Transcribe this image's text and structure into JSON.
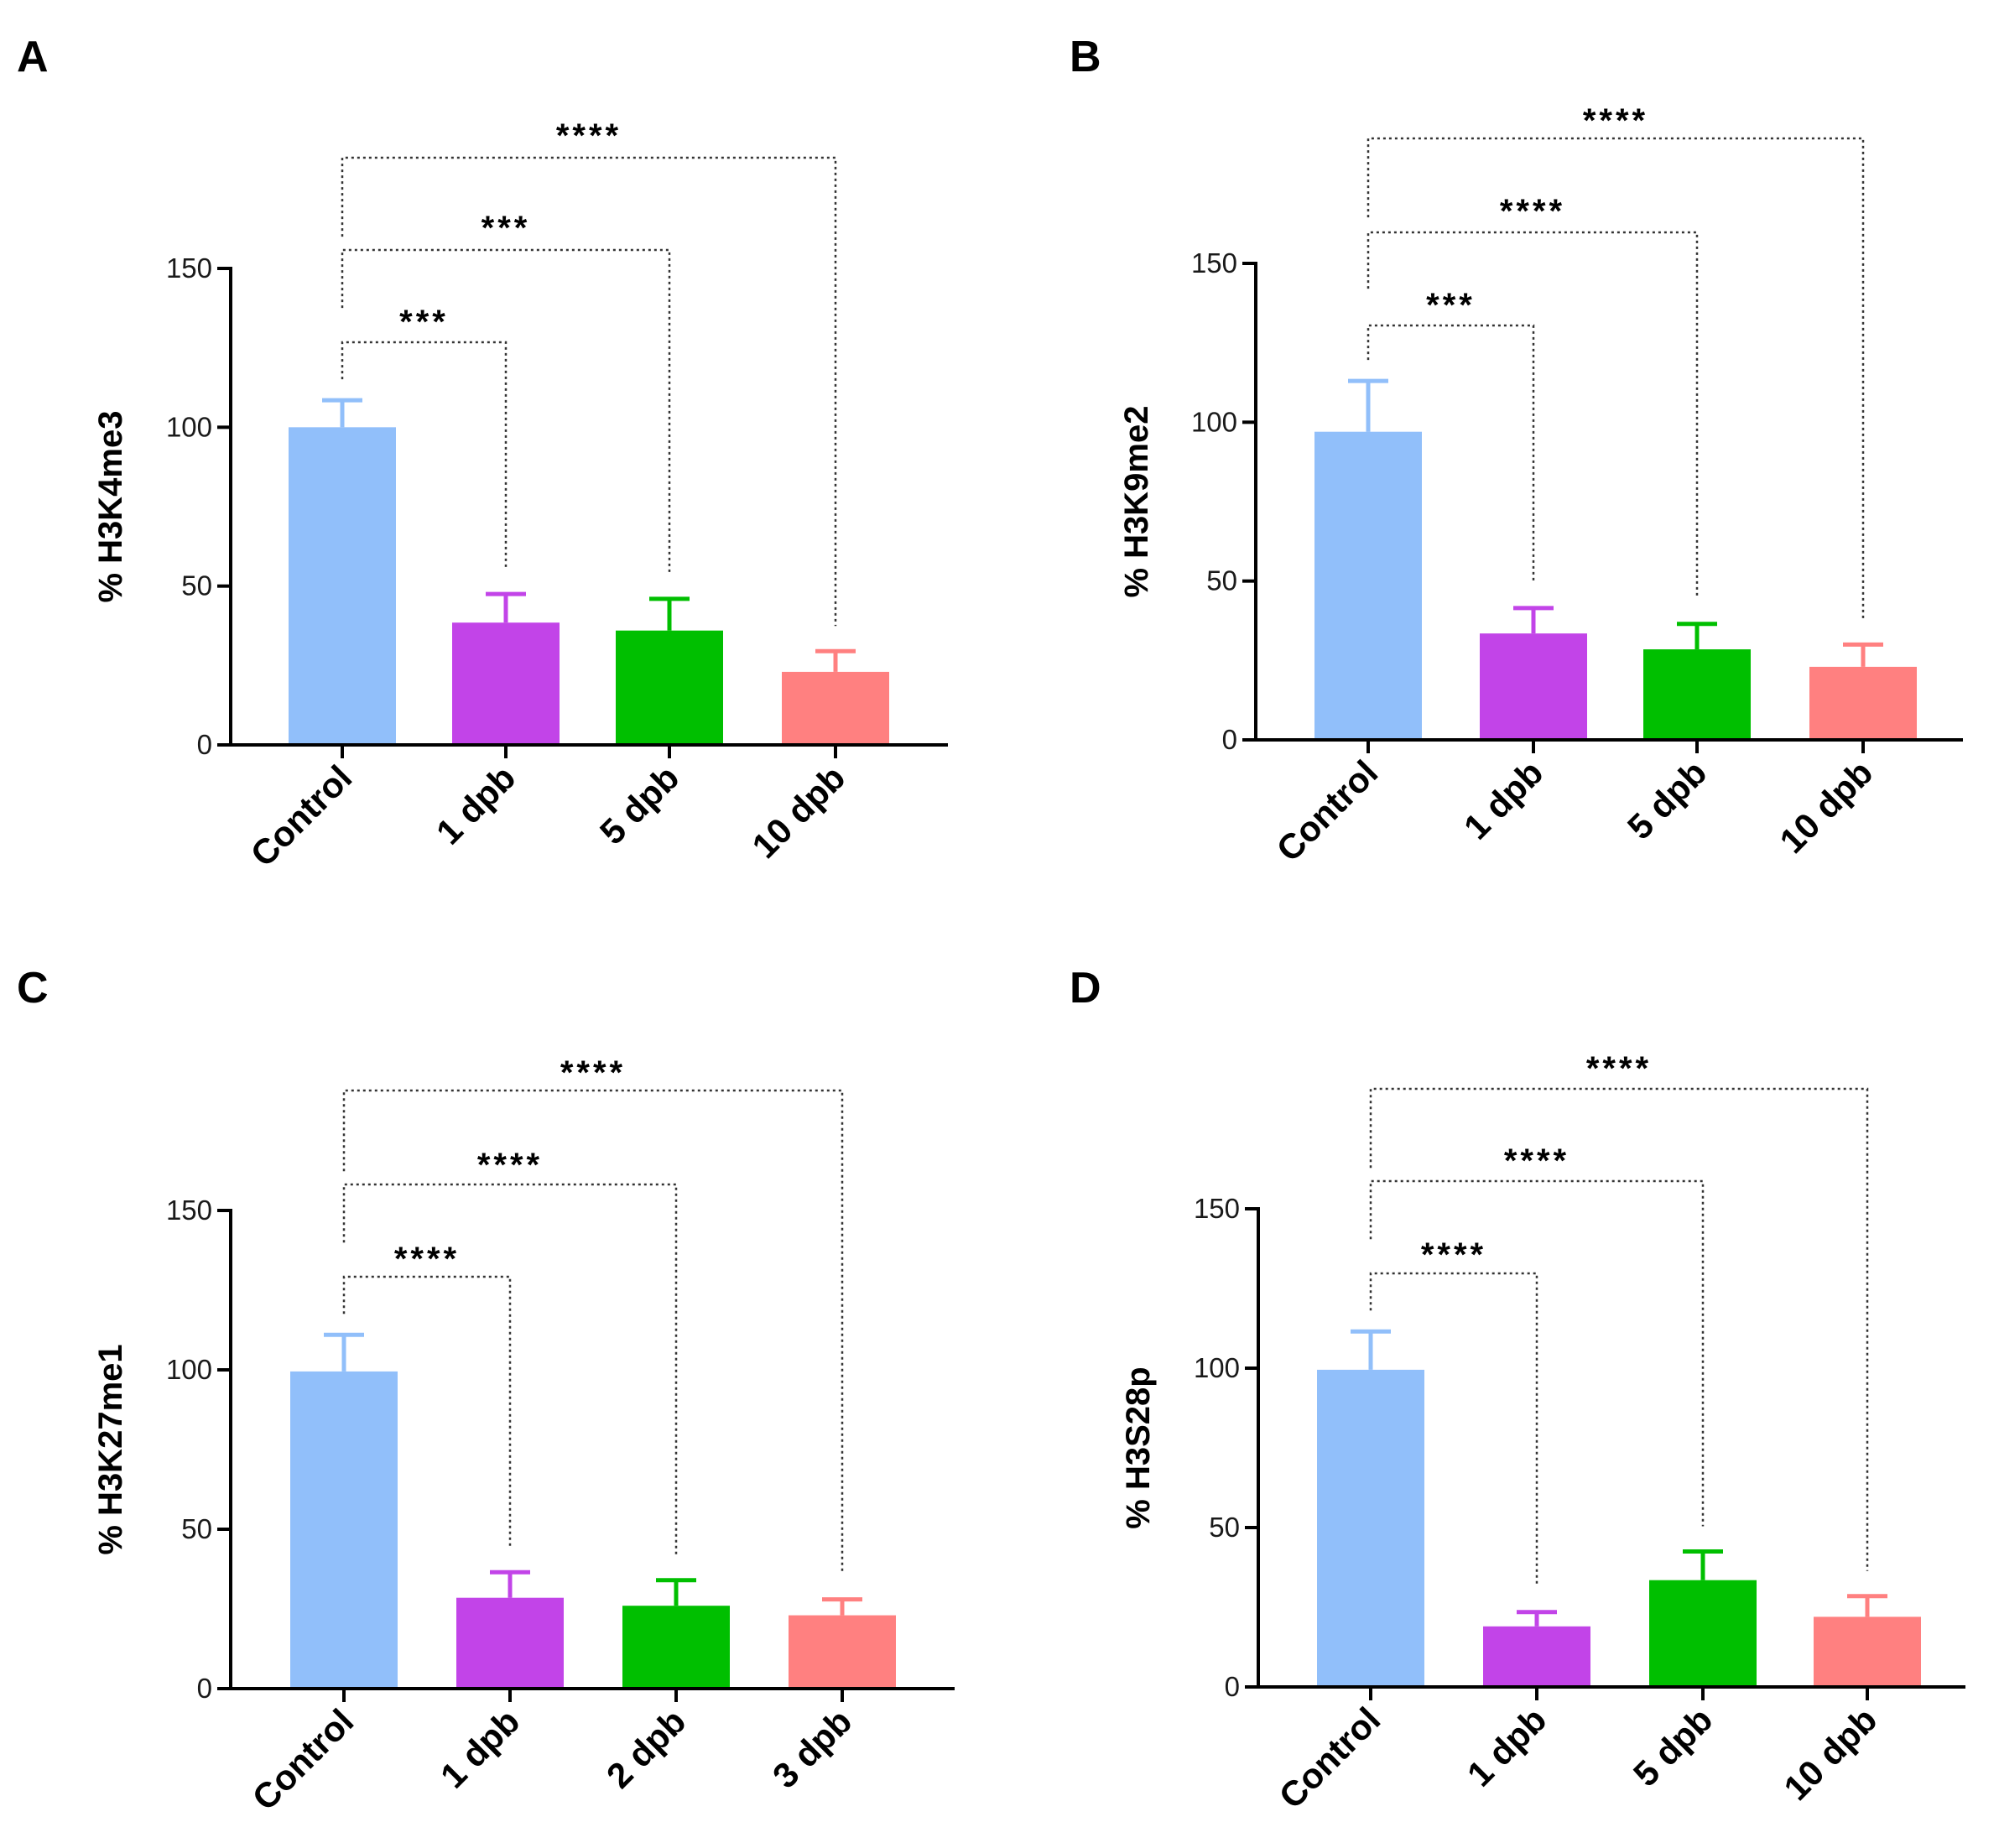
{
  "figure": {
    "panels": [
      {
        "letter": "A"
      },
      {
        "letter": "B"
      },
      {
        "letter": "C"
      },
      {
        "letter": "D"
      }
    ]
  },
  "colors": {
    "series": [
      "#91bffa",
      "#c244e8",
      "#00bf00",
      "#ff8080"
    ],
    "axis": "#000000",
    "bracket": "#333333"
  },
  "chart_data": [
    {
      "type": "bar",
      "title": "",
      "ylabel": "% H3K4me3",
      "xlabel": "",
      "ylim": [
        0,
        150
      ],
      "yticks": [
        0,
        50,
        100,
        150
      ],
      "grid": false,
      "categories": [
        "Control",
        "1 dpb",
        "5 dpb",
        "10 dpb"
      ],
      "values": [
        100,
        38.5,
        36,
        23
      ],
      "errors": [
        8.5,
        9,
        10,
        6.5
      ],
      "comparisons": [
        {
          "from": "Control",
          "to": "1 dpb",
          "label": "***"
        },
        {
          "from": "Control",
          "to": "5 dpb",
          "label": "***"
        },
        {
          "from": "Control",
          "to": "10 dpb",
          "label": "****"
        }
      ]
    },
    {
      "type": "bar",
      "title": "",
      "ylabel": "% H3K9me2",
      "xlabel": "",
      "ylim": [
        0,
        150
      ],
      "yticks": [
        0,
        50,
        100,
        150
      ],
      "grid": false,
      "categories": [
        "Control",
        "1 dpb",
        "5 dpb",
        "10 dpb"
      ],
      "values": [
        97,
        33.5,
        28.5,
        23
      ],
      "errors": [
        16,
        8,
        8,
        7
      ],
      "comparisons": [
        {
          "from": "Control",
          "to": "1 dpb",
          "label": "***"
        },
        {
          "from": "Control",
          "to": "5 dpb",
          "label": "****"
        },
        {
          "from": "Control",
          "to": "10 dpb",
          "label": "****"
        }
      ]
    },
    {
      "type": "bar",
      "title": "",
      "ylabel": "% H3K27me1",
      "xlabel": "",
      "ylim": [
        0,
        150
      ],
      "yticks": [
        0,
        50,
        100,
        150
      ],
      "grid": false,
      "categories": [
        "Control",
        "1 dpb",
        "2 dpb",
        "3 dpb"
      ],
      "values": [
        99.5,
        28.5,
        26,
        23
      ],
      "errors": [
        11.5,
        8,
        8,
        5
      ],
      "comparisons": [
        {
          "from": "Control",
          "to": "1 dpb",
          "label": "****"
        },
        {
          "from": "Control",
          "to": "2 dpb",
          "label": "****"
        },
        {
          "from": "Control",
          "to": "3 dpb",
          "label": "****"
        }
      ]
    },
    {
      "type": "bar",
      "title": "",
      "ylabel": "% H3S28p",
      "xlabel": "",
      "ylim": [
        0,
        150
      ],
      "yticks": [
        0,
        50,
        100,
        150
      ],
      "grid": false,
      "categories": [
        "Control",
        "1 dpb",
        "5 dpb",
        "10 dpb"
      ],
      "values": [
        99.5,
        19,
        33.5,
        22
      ],
      "errors": [
        12,
        4.5,
        9,
        6.5
      ],
      "comparisons": [
        {
          "from": "Control",
          "to": "1 dpb",
          "label": "****"
        },
        {
          "from": "Control",
          "to": "5 dpb",
          "label": "****"
        },
        {
          "from": "Control",
          "to": "10 dpb",
          "label": "****"
        }
      ]
    }
  ]
}
